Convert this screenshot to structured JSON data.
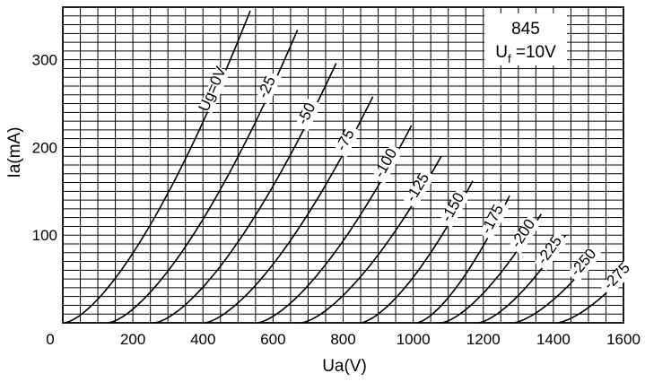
{
  "chart_data": {
    "type": "line",
    "title": "845",
    "subtitle_main": "U",
    "subtitle_sub": "f",
    "subtitle_rest": " =10V",
    "xlabel": "Ua(V)",
    "ylabel": "Ia(mA)",
    "xlim": [
      0,
      1600
    ],
    "ylim": [
      0,
      360
    ],
    "x_ticks": [
      "0",
      "200",
      "400",
      "600",
      "800",
      "1000",
      "1200",
      "1400",
      "1600"
    ],
    "y_ticks": [
      "100",
      "200",
      "300"
    ],
    "grid": true,
    "series": [
      {
        "name": "Ug=0V",
        "label": "Ug=0V",
        "x_start": 5,
        "x_end": 535,
        "y_end": 356
      },
      {
        "name": "-25",
        "label": "-25",
        "x_start": 130,
        "x_end": 670,
        "y_end": 334
      },
      {
        "name": "-50",
        "label": "-50",
        "x_start": 262,
        "x_end": 780,
        "y_end": 296
      },
      {
        "name": "-75",
        "label": "-75",
        "x_start": 405,
        "x_end": 885,
        "y_end": 258
      },
      {
        "name": "-100",
        "label": "-100",
        "x_start": 555,
        "x_end": 995,
        "y_end": 225
      },
      {
        "name": "-125",
        "label": "-125",
        "x_start": 680,
        "x_end": 1080,
        "y_end": 190
      },
      {
        "name": "-150",
        "label": "-150",
        "x_start": 850,
        "x_end": 1170,
        "y_end": 162
      },
      {
        "name": "-175",
        "label": "-175",
        "x_start": 1010,
        "x_end": 1275,
        "y_end": 145
      },
      {
        "name": "-200",
        "label": "-200",
        "x_start": 1080,
        "x_end": 1365,
        "y_end": 124
      },
      {
        "name": "-225",
        "label": "-225",
        "x_start": 1185,
        "x_end": 1435,
        "y_end": 100
      },
      {
        "name": "-250",
        "label": "-250",
        "x_start": 1285,
        "x_end": 1530,
        "y_end": 82
      },
      {
        "name": "-275",
        "label": "-275",
        "x_start": 1410,
        "x_end": 1620,
        "y_end": 62
      }
    ]
  }
}
